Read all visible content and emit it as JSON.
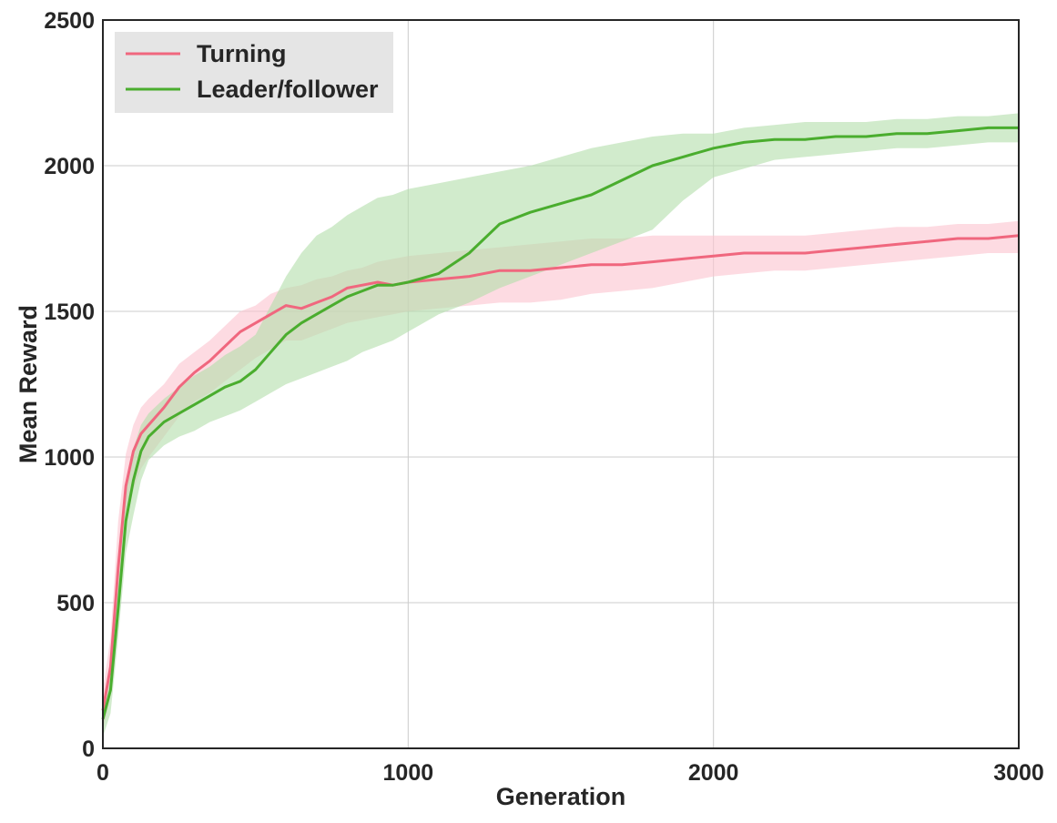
{
  "chart_data": {
    "type": "line",
    "title": "",
    "xlabel": "Generation",
    "ylabel": "Mean Reward",
    "xlim": [
      0,
      3000
    ],
    "ylim": [
      0,
      2500
    ],
    "xticks": [
      0,
      1000,
      2000,
      3000
    ],
    "yticks": [
      0,
      500,
      1000,
      1500,
      2000,
      2500
    ],
    "grid": true,
    "legend_position": "top-left",
    "series": [
      {
        "name": "Turning",
        "color": "#f0677e",
        "band_color": "#fbc3cf",
        "x": [
          0,
          25,
          50,
          75,
          100,
          125,
          150,
          200,
          250,
          300,
          350,
          400,
          450,
          500,
          550,
          600,
          650,
          700,
          750,
          800,
          850,
          900,
          950,
          1000,
          1100,
          1200,
          1300,
          1400,
          1500,
          1600,
          1700,
          1800,
          1900,
          2000,
          2100,
          2200,
          2300,
          2400,
          2500,
          2600,
          2700,
          2800,
          2900,
          3000
        ],
        "mean": [
          130,
          280,
          620,
          900,
          1020,
          1080,
          1110,
          1170,
          1240,
          1290,
          1330,
          1380,
          1430,
          1460,
          1490,
          1520,
          1510,
          1530,
          1550,
          1580,
          1590,
          1600,
          1590,
          1600,
          1610,
          1620,
          1640,
          1640,
          1650,
          1660,
          1660,
          1670,
          1680,
          1690,
          1700,
          1700,
          1700,
          1710,
          1720,
          1730,
          1740,
          1750,
          1750,
          1760
        ],
        "upper": [
          200,
          380,
          780,
          1010,
          1110,
          1170,
          1200,
          1250,
          1320,
          1360,
          1400,
          1450,
          1500,
          1520,
          1560,
          1580,
          1590,
          1610,
          1620,
          1640,
          1650,
          1670,
          1680,
          1690,
          1700,
          1710,
          1720,
          1730,
          1740,
          1750,
          1750,
          1760,
          1760,
          1760,
          1760,
          1760,
          1760,
          1770,
          1780,
          1790,
          1790,
          1800,
          1800,
          1810
        ],
        "lower": [
          60,
          180,
          480,
          760,
          890,
          960,
          1000,
          1070,
          1140,
          1190,
          1220,
          1260,
          1300,
          1340,
          1370,
          1400,
          1400,
          1420,
          1440,
          1460,
          1470,
          1480,
          1490,
          1500,
          1510,
          1520,
          1530,
          1530,
          1540,
          1560,
          1570,
          1580,
          1600,
          1620,
          1630,
          1640,
          1640,
          1650,
          1660,
          1670,
          1680,
          1690,
          1700,
          1700
        ]
      },
      {
        "name": "Leader/follower",
        "color": "#4aad2e",
        "band_color": "#b3deaa",
        "x": [
          0,
          25,
          50,
          75,
          100,
          125,
          150,
          200,
          250,
          300,
          350,
          400,
          450,
          500,
          550,
          600,
          650,
          700,
          750,
          800,
          850,
          900,
          950,
          1000,
          1100,
          1200,
          1300,
          1400,
          1500,
          1600,
          1700,
          1800,
          1900,
          2000,
          2100,
          2200,
          2300,
          2400,
          2500,
          2600,
          2700,
          2800,
          2900,
          3000
        ],
        "mean": [
          100,
          200,
          480,
          780,
          920,
          1020,
          1070,
          1120,
          1150,
          1180,
          1210,
          1240,
          1260,
          1300,
          1360,
          1420,
          1460,
          1490,
          1520,
          1550,
          1570,
          1590,
          1590,
          1600,
          1630,
          1700,
          1800,
          1840,
          1870,
          1900,
          1950,
          2000,
          2030,
          2060,
          2080,
          2090,
          2090,
          2100,
          2100,
          2110,
          2110,
          2120,
          2130,
          2130
        ],
        "upper": [
          160,
          280,
          580,
          880,
          1030,
          1110,
          1150,
          1200,
          1240,
          1280,
          1310,
          1350,
          1380,
          1420,
          1520,
          1620,
          1700,
          1760,
          1790,
          1830,
          1860,
          1890,
          1900,
          1920,
          1940,
          1960,
          1980,
          2000,
          2030,
          2060,
          2080,
          2100,
          2110,
          2110,
          2130,
          2140,
          2150,
          2150,
          2150,
          2160,
          2160,
          2170,
          2170,
          2180
        ],
        "lower": [
          40,
          120,
          380,
          670,
          800,
          920,
          990,
          1040,
          1070,
          1090,
          1120,
          1140,
          1160,
          1190,
          1220,
          1250,
          1270,
          1290,
          1310,
          1330,
          1360,
          1380,
          1400,
          1430,
          1490,
          1530,
          1580,
          1620,
          1660,
          1700,
          1740,
          1780,
          1880,
          1960,
          1990,
          2020,
          2030,
          2040,
          2050,
          2060,
          2060,
          2070,
          2080,
          2080
        ]
      }
    ]
  }
}
